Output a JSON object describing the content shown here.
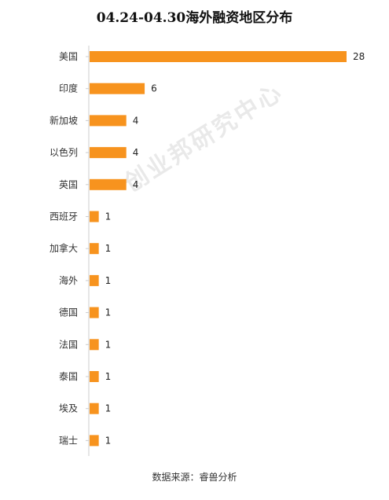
{
  "chart_data": {
    "type": "bar",
    "orientation": "horizontal",
    "title": "04.24-04.30海外融资地区分布",
    "categories": [
      "美国",
      "印度",
      "新加坡",
      "以色列",
      "英国",
      "西班牙",
      "加拿大",
      "海外",
      "德国",
      "法国",
      "泰国",
      "埃及",
      "瑞士"
    ],
    "values": [
      28,
      6,
      4,
      4,
      4,
      1,
      1,
      1,
      1,
      1,
      1,
      1,
      1
    ],
    "xlim": [
      0,
      28
    ],
    "grid": false,
    "legend": "none",
    "bar_color": "#F7931E",
    "axis_color": "#cccccc"
  },
  "watermark": "创业邦研究中心",
  "source": "数据来源：睿兽分析"
}
